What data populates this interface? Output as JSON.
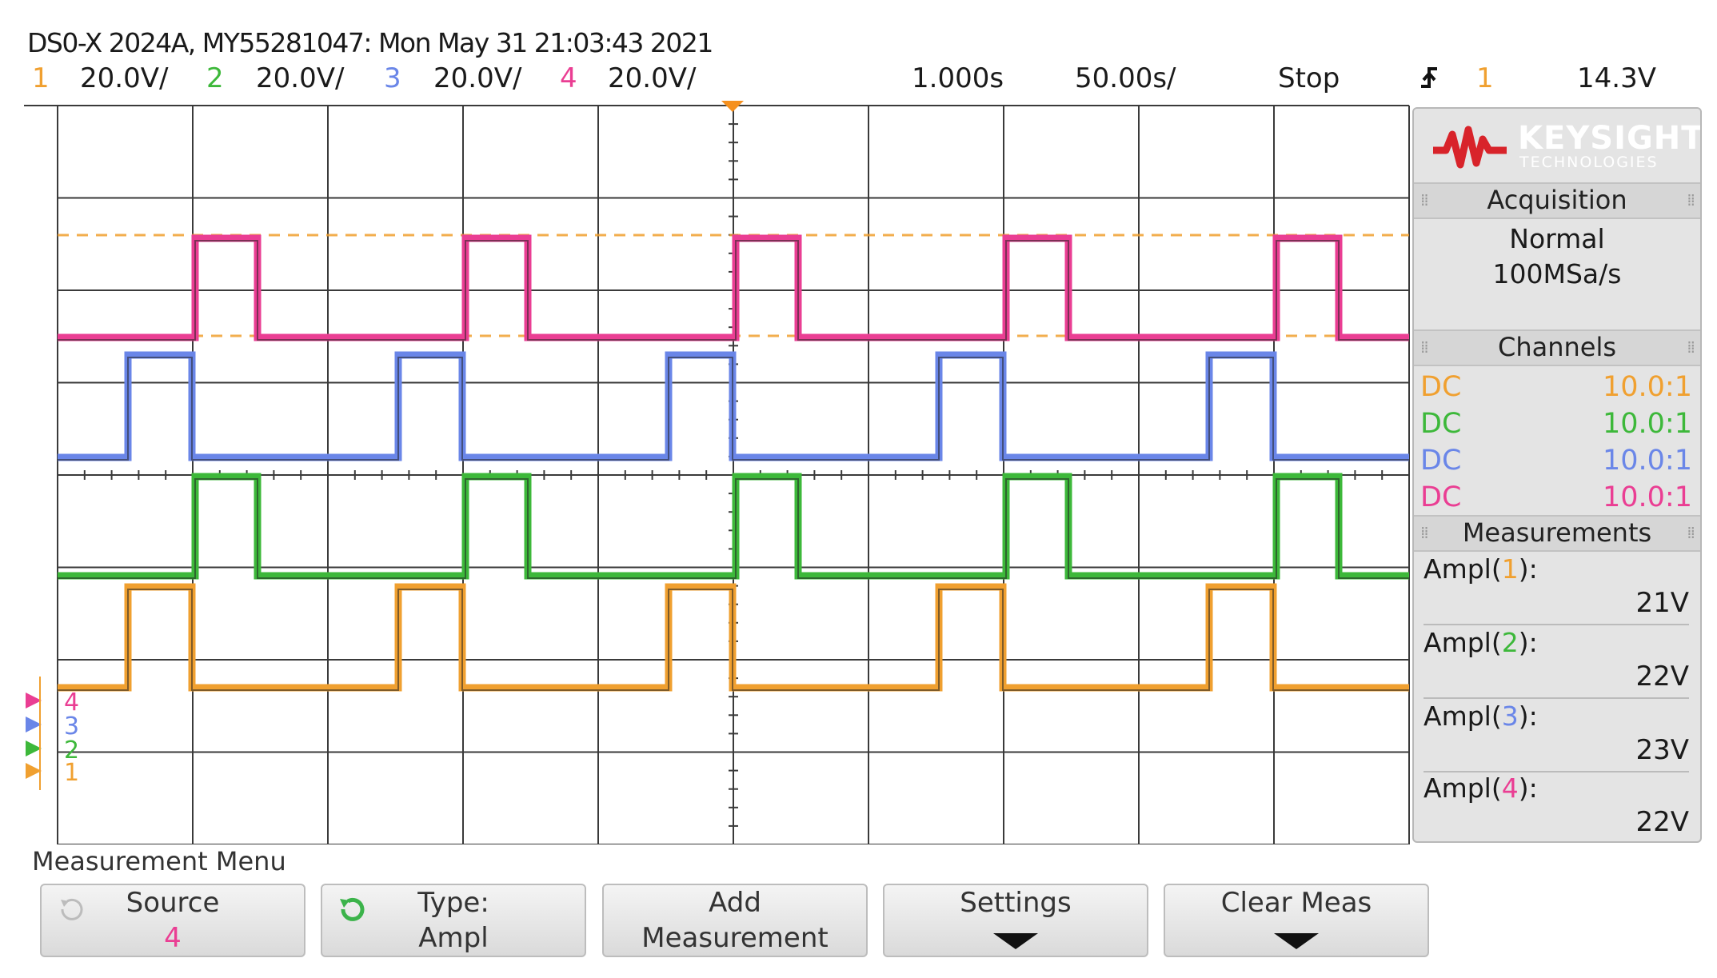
{
  "header": {
    "title": "DS0-X 2024A, MY55281047: Mon May 31 21:03:43 2021",
    "channels": [
      {
        "num": "1",
        "scale": "20.0V/"
      },
      {
        "num": "2",
        "scale": "20.0V/"
      },
      {
        "num": "3",
        "scale": "20.0V/"
      },
      {
        "num": "4",
        "scale": "20.0V/"
      }
    ],
    "time_delay": "1.000s",
    "time_scale": "50.00s/",
    "run_state": "Stop",
    "trigger_channel": "1",
    "trigger_level": "14.3V"
  },
  "colors": {
    "ch1": "#f0a030",
    "ch2": "#3db83a",
    "ch3": "#6a86e8",
    "ch4": "#ea3e93",
    "grid": "#3a3a3a"
  },
  "side_panel": {
    "logo_name": "KEYSIGHT",
    "logo_sub": "TECHNOLOGIES",
    "acquisition_title": "Acquisition",
    "acquisition_mode": "Normal",
    "sample_rate": "100MSa/s",
    "channels_title": "Channels",
    "channel_rows": [
      {
        "coupling": "DC",
        "probe": "10.0:1"
      },
      {
        "coupling": "DC",
        "probe": "10.0:1"
      },
      {
        "coupling": "DC",
        "probe": "10.0:1"
      },
      {
        "coupling": "DC",
        "probe": "10.0:1"
      }
    ],
    "measurements_title": "Measurements",
    "measurements": [
      {
        "prefix": "Ampl(",
        "ch": "1",
        "suffix": "):",
        "value": "21V"
      },
      {
        "prefix": "Ampl(",
        "ch": "2",
        "suffix": "):",
        "value": "22V"
      },
      {
        "prefix": "Ampl(",
        "ch": "3",
        "suffix": "):",
        "value": "23V"
      },
      {
        "prefix": "Ampl(",
        "ch": "4",
        "suffix": "):",
        "value": "22V"
      }
    ]
  },
  "ground_markers": [
    "4",
    "3",
    "2",
    "1"
  ],
  "menu": {
    "title": "Measurement Menu",
    "softkeys": [
      {
        "line1": "Source",
        "line2": "4"
      },
      {
        "line1": "Type:",
        "line2": "Ampl"
      },
      {
        "line1": "Add",
        "line2": "Measurement"
      },
      {
        "line1": "Settings",
        "line2": ""
      },
      {
        "line1": "Clear Meas",
        "line2": ""
      }
    ]
  }
}
